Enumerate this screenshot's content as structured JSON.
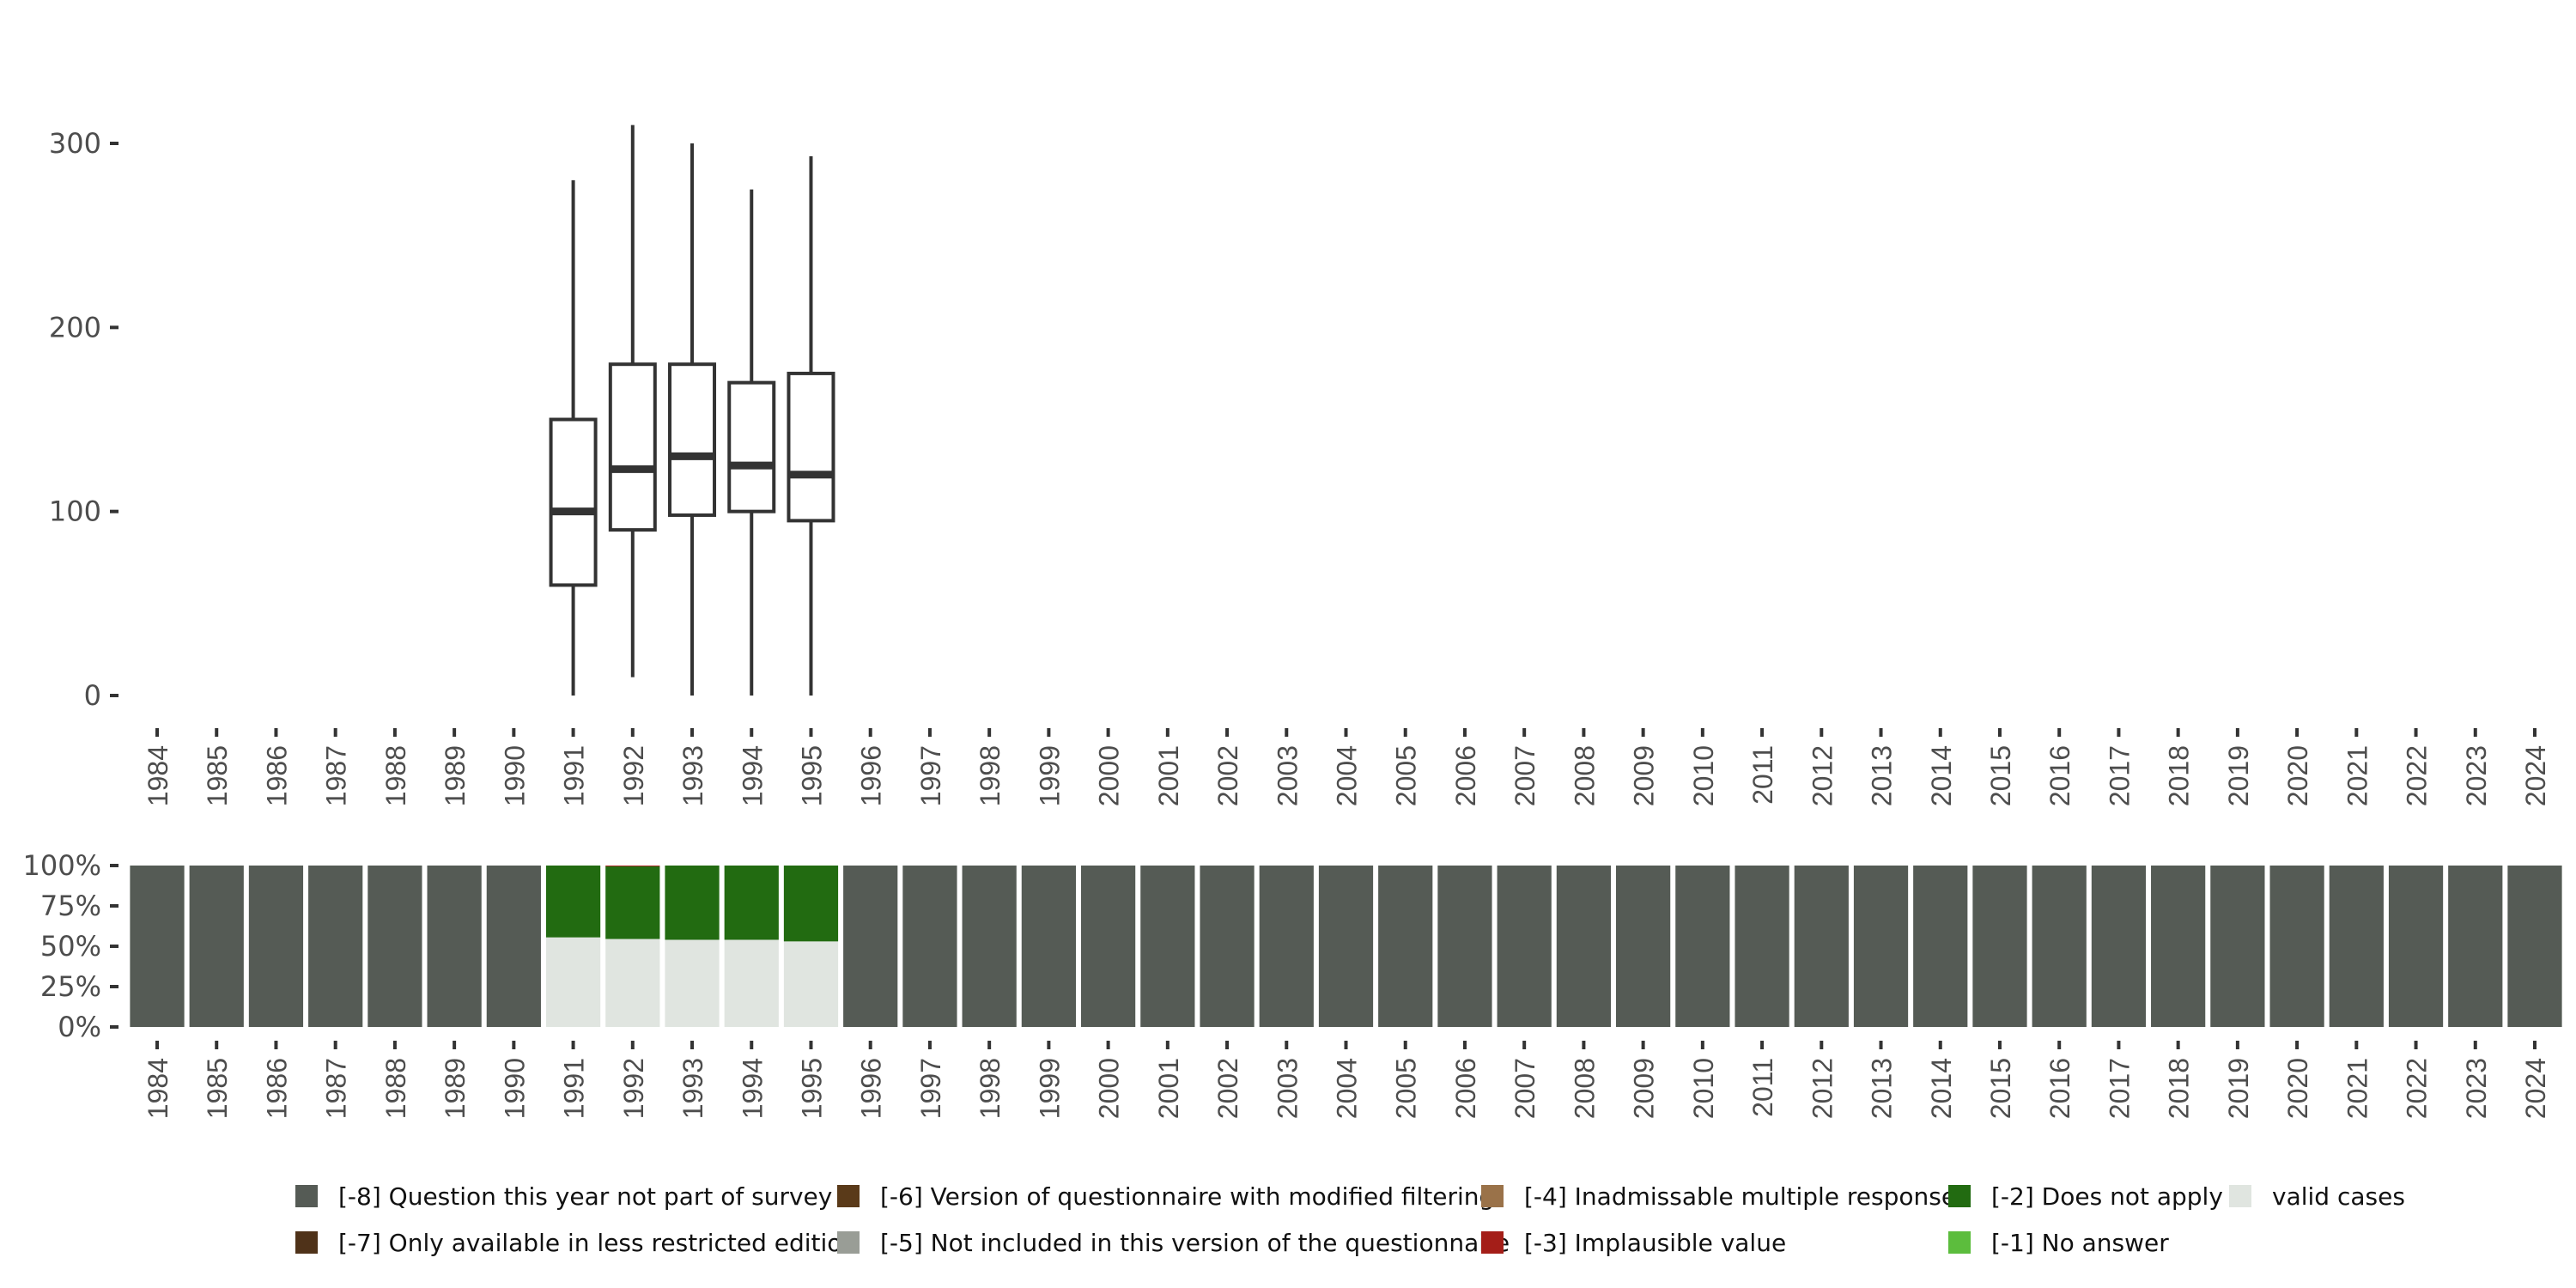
{
  "chart_data": [
    {
      "type": "boxplot",
      "title": "",
      "xlabel": "",
      "ylabel": "",
      "ylim": [
        0,
        310
      ],
      "yticks": [
        "0",
        "100",
        "200",
        "300"
      ],
      "ytick_values": [
        0,
        100,
        200,
        300
      ],
      "categories": [
        "1984",
        "1985",
        "1986",
        "1987",
        "1988",
        "1989",
        "1990",
        "1991",
        "1992",
        "1993",
        "1994",
        "1995",
        "1996",
        "1997",
        "1998",
        "1999",
        "2000",
        "2001",
        "2002",
        "2003",
        "2004",
        "2005",
        "2006",
        "2007",
        "2008",
        "2009",
        "2010",
        "2011",
        "2012",
        "2013",
        "2014",
        "2015",
        "2016",
        "2017",
        "2018",
        "2019",
        "2020",
        "2021",
        "2022",
        "2023",
        "2024"
      ],
      "boxes": [
        {
          "year": "1991",
          "min": 0,
          "q1": 60,
          "median": 100,
          "q3": 150,
          "max": 280
        },
        {
          "year": "1992",
          "min": 10,
          "q1": 90,
          "median": 123,
          "q3": 180,
          "max": 310
        },
        {
          "year": "1993",
          "min": 0,
          "q1": 98,
          "median": 130,
          "q3": 180,
          "max": 300
        },
        {
          "year": "1994",
          "min": 0,
          "q1": 100,
          "median": 125,
          "q3": 170,
          "max": 275
        },
        {
          "year": "1995",
          "min": 0,
          "q1": 95,
          "median": 120,
          "q3": 175,
          "max": 293
        }
      ]
    },
    {
      "type": "bar",
      "stacked": true,
      "ylim": [
        0,
        100
      ],
      "yticks": [
        "0%",
        "25%",
        "50%",
        "75%",
        "100%"
      ],
      "ytick_values": [
        0,
        25,
        50,
        75,
        100
      ],
      "categories": [
        "1984",
        "1985",
        "1986",
        "1987",
        "1988",
        "1989",
        "1990",
        "1991",
        "1992",
        "1993",
        "1994",
        "1995",
        "1996",
        "1997",
        "1998",
        "1999",
        "2000",
        "2001",
        "2002",
        "2003",
        "2004",
        "2005",
        "2006",
        "2007",
        "2008",
        "2009",
        "2010",
        "2011",
        "2012",
        "2013",
        "2014",
        "2015",
        "2016",
        "2017",
        "2018",
        "2019",
        "2020",
        "2021",
        "2022",
        "2023",
        "2024"
      ],
      "survey_years": {
        "1991": {
          "valid": 55.5,
          "dna": 44.5,
          "implausible": 0
        },
        "1992": {
          "valid": 54.5,
          "dna": 45,
          "implausible": 0.5
        },
        "1993": {
          "valid": 54,
          "dna": 46,
          "implausible": 0
        },
        "1994": {
          "valid": 54,
          "dna": 46,
          "implausible": 0
        },
        "1995": {
          "valid": 53,
          "dna": 47,
          "implausible": 0
        }
      },
      "default": "not_part",
      "legend_position": "bottom",
      "legend": [
        {
          "key": "not_part",
          "label": "[-8] Question this year not part of survey",
          "color": "#555b55"
        },
        {
          "key": "less_restricted",
          "label": "[-7] Only available in less restricted edition",
          "color": "#4f3219"
        },
        {
          "key": "modified",
          "label": "[-6] Version of questionnaire with modified filtering",
          "color": "#5a3a19"
        },
        {
          "key": "not_included",
          "label": "[-5] Not included in this version of the questionnaire",
          "color": "#999d96"
        },
        {
          "key": "inadmissable",
          "label": "[-4] Inadmissable multiple response",
          "color": "#9a7249"
        },
        {
          "key": "implausible",
          "label": "[-3] Implausible value",
          "color": "#a41e18"
        },
        {
          "key": "dna",
          "label": "[-2] Does not apply",
          "color": "#226b11"
        },
        {
          "key": "no_answer",
          "label": "[-1] No answer",
          "color": "#5cbd3d"
        },
        {
          "key": "valid",
          "label": "valid cases",
          "color": "#e0e5e0"
        }
      ]
    }
  ]
}
